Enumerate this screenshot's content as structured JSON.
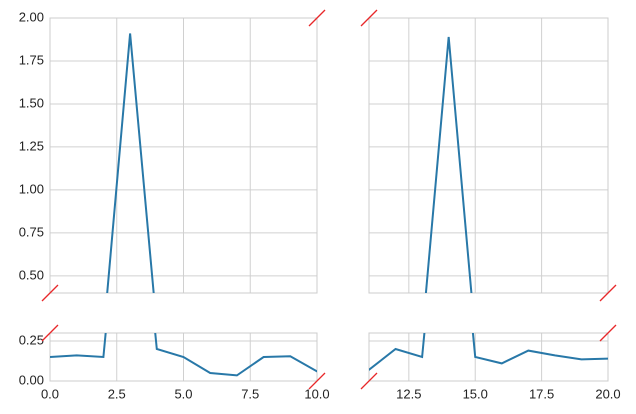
{
  "chart_data": {
    "type": "line",
    "x": [
      0,
      1,
      2,
      3,
      4,
      5,
      6,
      7,
      8,
      9,
      10,
      11,
      12,
      13,
      14,
      15,
      16,
      17,
      18,
      19,
      20
    ],
    "series": [
      {
        "color": "#2878a8",
        "values": [
          0.15,
          0.16,
          0.15,
          1.91,
          0.2,
          0.15,
          0.05,
          0.035,
          0.15,
          0.155,
          0.06,
          0.07,
          0.2,
          0.15,
          1.89,
          0.15,
          0.11,
          0.19,
          0.16,
          0.135,
          0.14
        ]
      }
    ],
    "grid": true,
    "xaxes": [
      {
        "xlim": [
          0,
          10
        ],
        "xticks": [
          {
            "value": 0,
            "label": "0.0"
          },
          2.5,
          {
            "value": 5,
            "label": "5.0"
          },
          7.5,
          {
            "value": 10,
            "label": "10.0"
          }
        ]
      },
      {
        "xlim": [
          11,
          20
        ],
        "xticks": [
          12.5,
          {
            "value": 15,
            "label": "15.0"
          },
          17.5,
          {
            "value": 20,
            "label": "20.0"
          }
        ]
      }
    ],
    "yaxes": [
      {
        "ylim": [
          0.4,
          2.0
        ],
        "yticks": [
          {
            "value": 0.5,
            "label": "0.50"
          },
          0.75,
          {
            "value": 1.0,
            "label": "1.00"
          },
          1.25,
          {
            "value": 1.5,
            "label": "1.50"
          },
          1.75,
          {
            "value": 2.0,
            "label": "2.00"
          }
        ]
      },
      {
        "ylim": [
          0,
          0.3
        ],
        "yticks": [
          {
            "value": 0,
            "label": "0.00"
          },
          0.25
        ]
      }
    ]
  }
}
